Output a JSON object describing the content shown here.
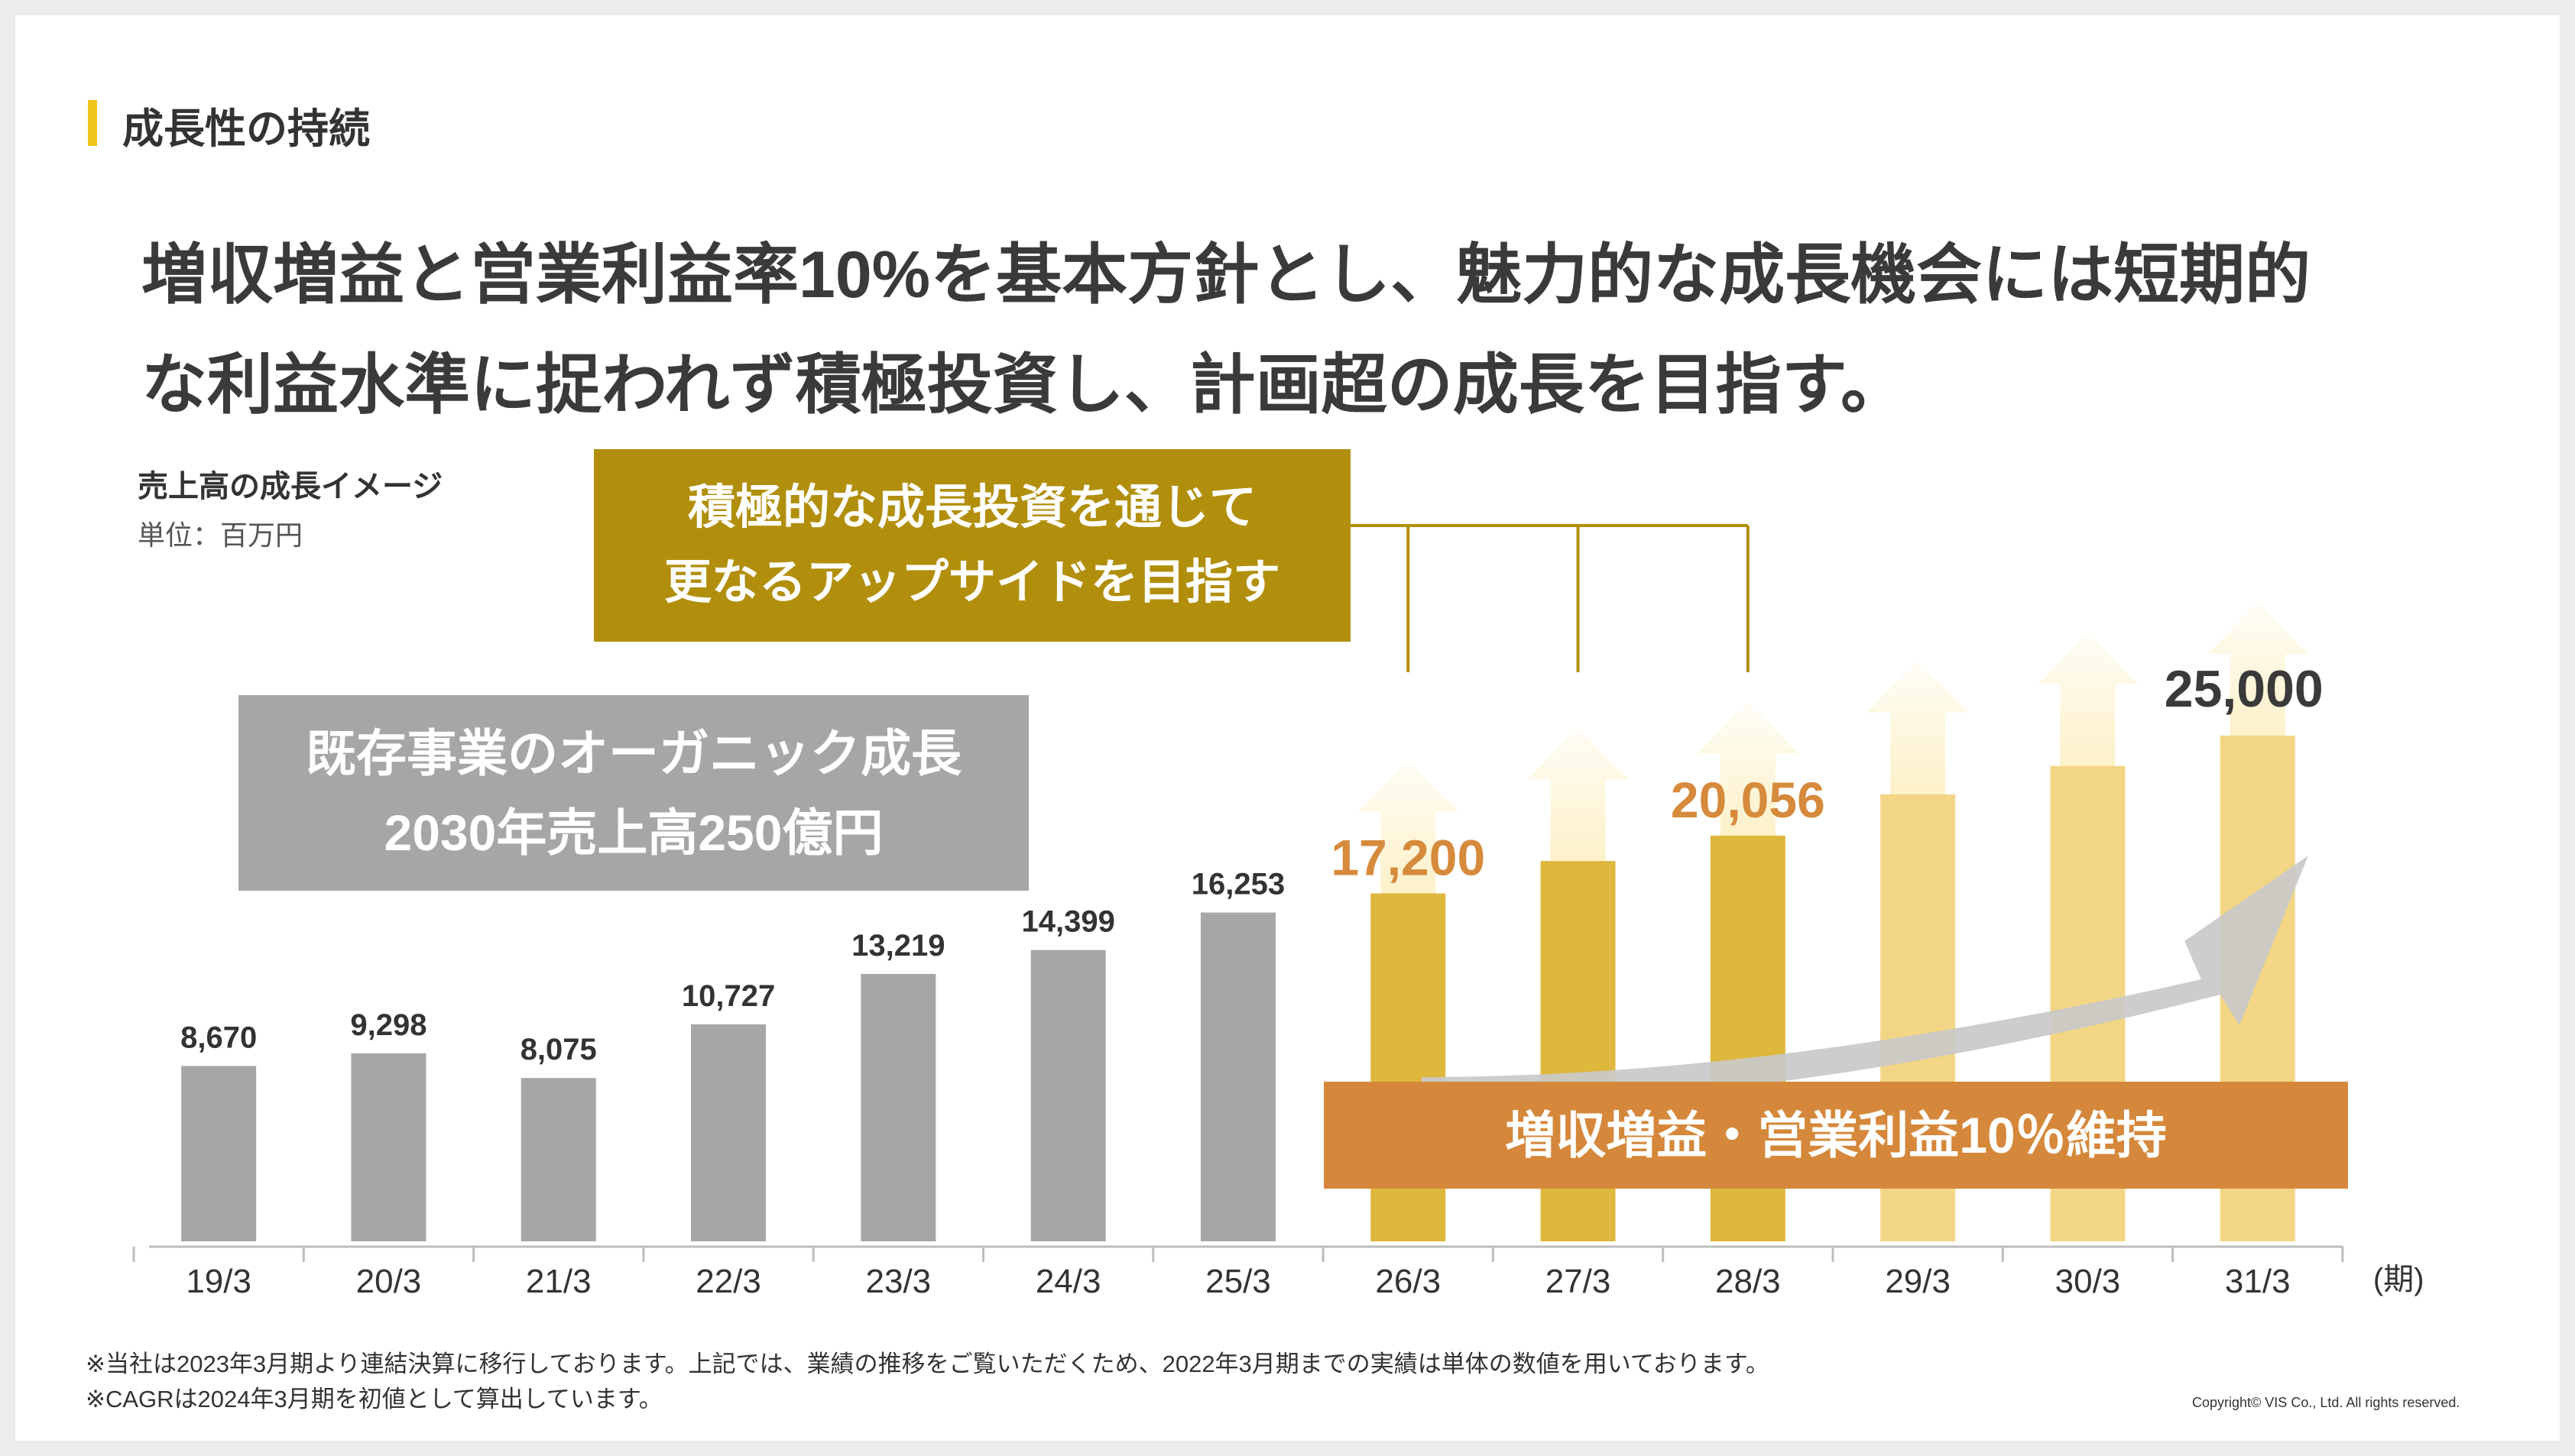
{
  "section": {
    "title": "成長性の持続"
  },
  "headline": {
    "line1": "増収増益と営業利益率10%を基本方針とし、魅力的な成長機会には短期的",
    "line2": "な利益水準に捉われず積極投資し、計画超の成長を目指す。"
  },
  "invest_box": {
    "line1": "積極的な成長投資を通じて",
    "line2": "更なるアップサイドを目指す"
  },
  "organic_box": {
    "line1": "既存事業のオーガニック成長",
    "line2": "2030年売上高250億円"
  },
  "growth_box": {
    "label": "増収増益・営業利益10％維持"
  },
  "footnotes": {
    "note1": "※当社は2023年3月期より連結決算に移行しております。上記では、業績の推移をご覧いただくため、2022年3月期までの実績は単体の数値を用いております。",
    "note2": "※CAGRは2024年3月期を初値として算出しています。"
  },
  "copyright": "Copyright© VIS Co., Ltd. All rights reserved.",
  "colors": {
    "actual_bar": "#a6a6a6",
    "plan_bar": "#deb73d",
    "future_bar": "#f3d685",
    "plan_label": "#d68a3c",
    "arrow": "#c9c9c9",
    "accent_yellow": "#f0c419"
  },
  "chart_data": {
    "type": "bar",
    "title": "売上高の成長イメージ",
    "unit_label": "単位：百万円",
    "x_unit": "(期)",
    "ylim": [
      0,
      27000
    ],
    "categories": [
      "19/3",
      "20/3",
      "21/3",
      "22/3",
      "23/3",
      "24/3",
      "25/3",
      "26/3",
      "27/3",
      "28/3",
      "29/3",
      "30/3",
      "31/3"
    ],
    "values": [
      8670,
      9298,
      8075,
      10727,
      13219,
      14399,
      16253,
      17200,
      18800,
      20056,
      22100,
      23500,
      25000
    ],
    "value_labels": [
      "8,670",
      "9,298",
      "8,075",
      "10,727",
      "13,219",
      "14,399",
      "16,253",
      "17,200",
      "",
      "20,056",
      "",
      "",
      "25,000"
    ],
    "bar_kind": [
      "actual",
      "actual",
      "actual",
      "actual",
      "actual",
      "actual",
      "actual",
      "plan",
      "plan",
      "plan",
      "future",
      "future",
      "future"
    ],
    "upside_arrows": [
      false,
      false,
      false,
      false,
      false,
      false,
      false,
      true,
      true,
      true,
      true,
      true,
      true
    ]
  }
}
